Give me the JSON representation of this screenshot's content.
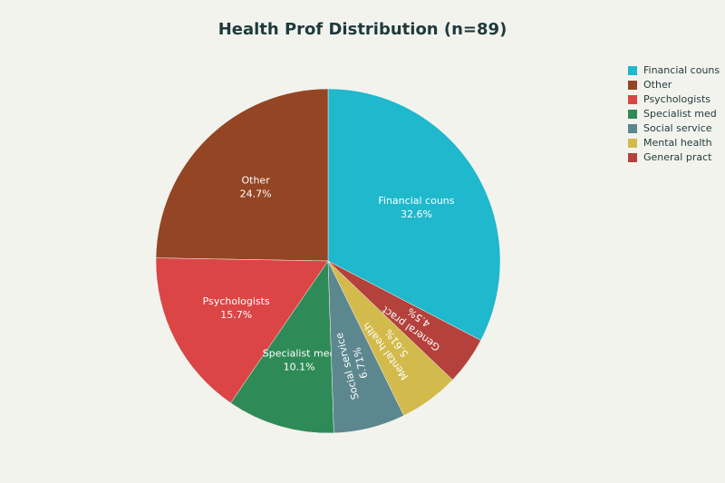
{
  "chart_data": {
    "type": "pie",
    "title": "Health Prof Distribution (n=89)",
    "categories": [
      "Financial couns",
      "Other",
      "Psychologists",
      "Specialist med",
      "Social service",
      "Mental health",
      "General pract"
    ],
    "values": [
      32.6,
      24.7,
      15.7,
      10.1,
      6.71,
      5.61,
      4.5
    ],
    "value_labels": [
      "32.6%",
      "24.7%",
      "15.7%",
      "10.1%",
      "6.71%",
      "5.61%",
      "4.5%"
    ],
    "colors": [
      "#1fb8cd",
      "#944524",
      "#db4545",
      "#2e8b57",
      "#5d878f",
      "#d2ba4c",
      "#b4413c"
    ],
    "legend": "top-right"
  }
}
